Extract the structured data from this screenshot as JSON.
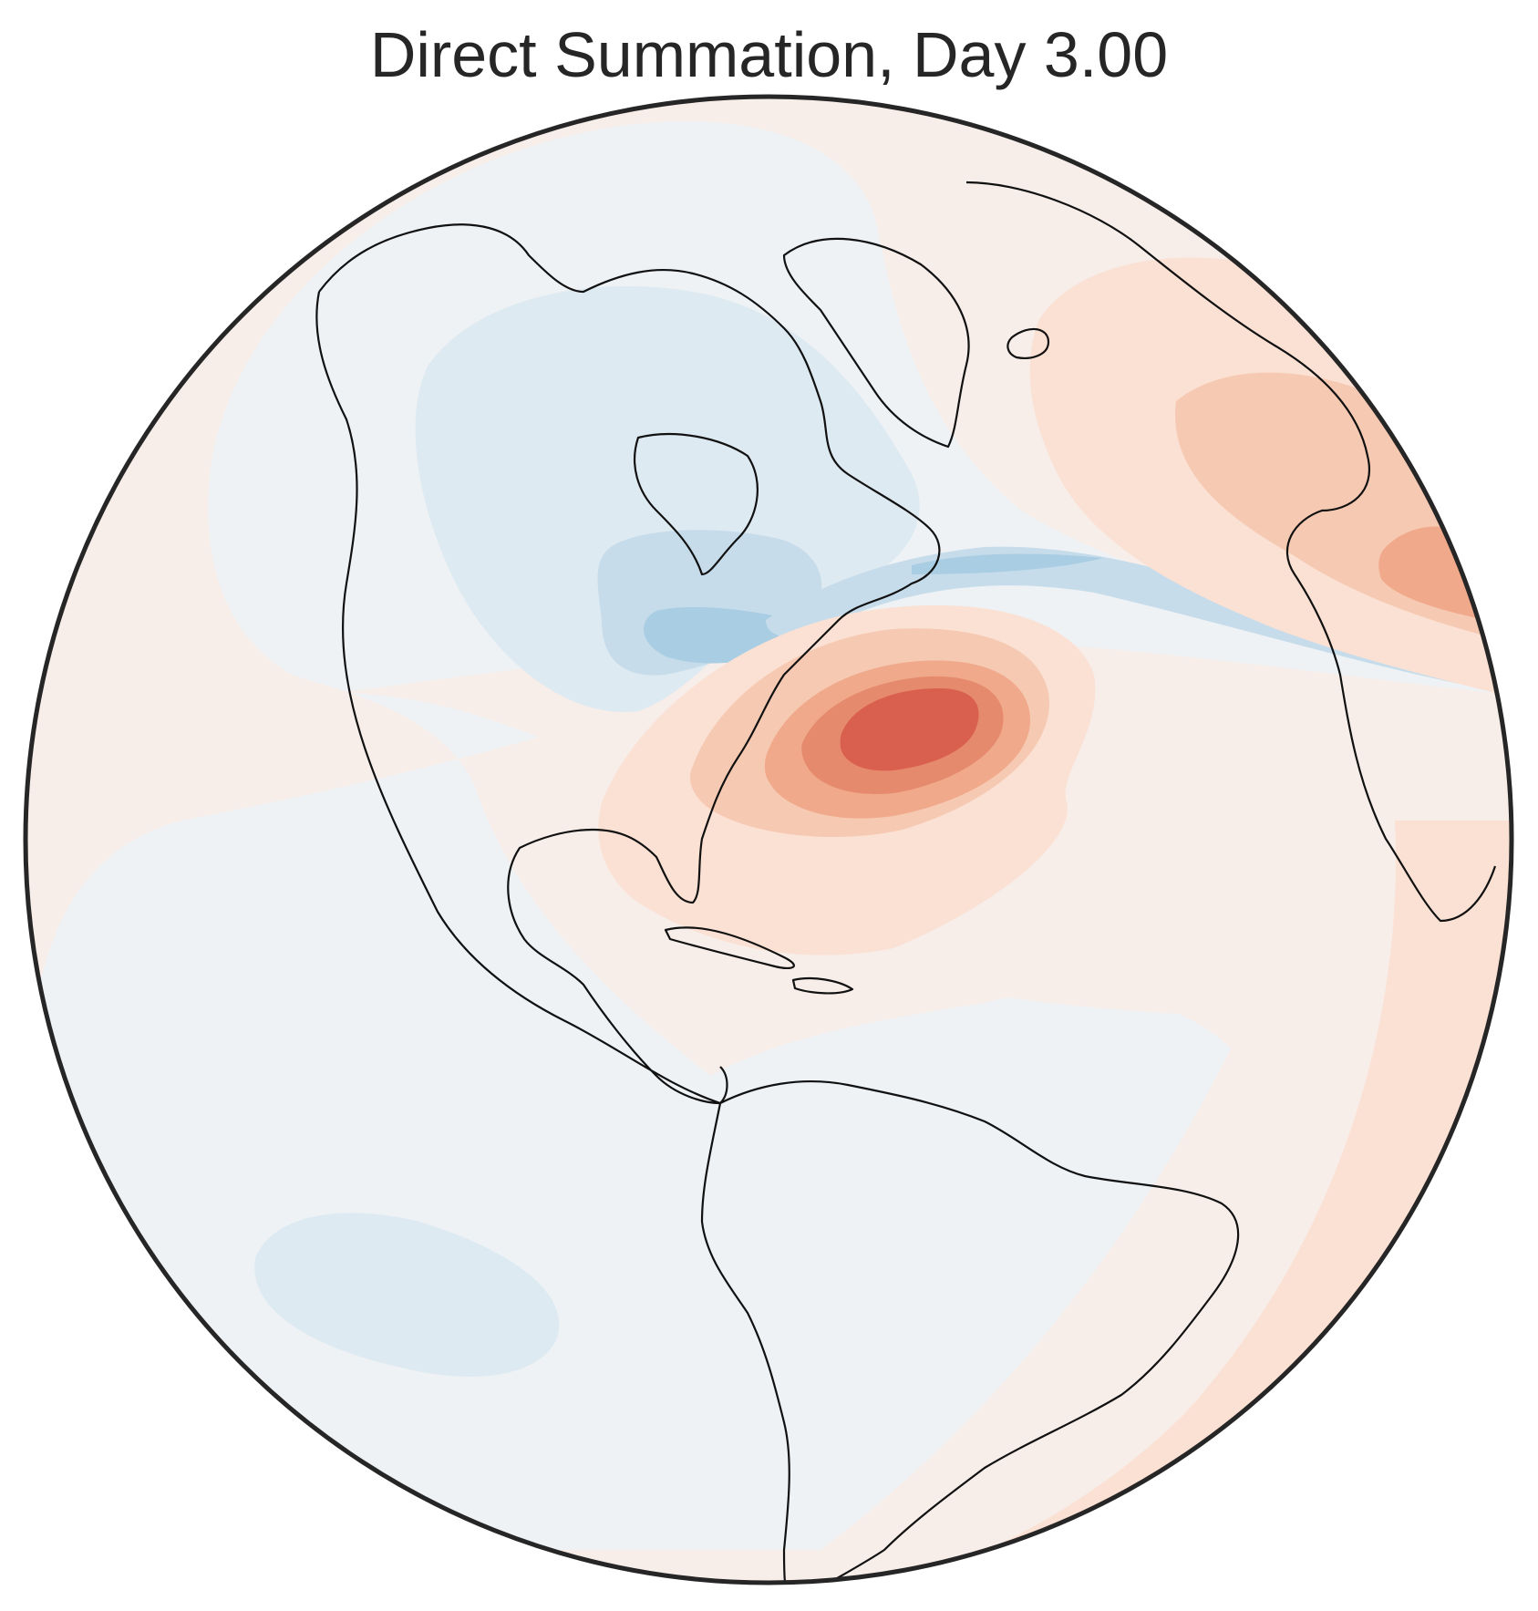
{
  "figure": {
    "title": "Direct Summation, Day 3.00",
    "projection": "orthographic",
    "colormap": "diverging red-blue",
    "colors": {
      "background_positive": "#f7ede9",
      "background_negative": "#eef2f5",
      "blue_1": "#deeaf2",
      "blue_2": "#c6dcea",
      "blue_3": "#a9cde2",
      "red_1": "#fbe1d4",
      "red_2": "#f6c9b2",
      "red_3": "#f0a98a",
      "red_4": "#e68a6d",
      "red_5": "#d9604f",
      "coastline": "#111111",
      "frame": "#262626"
    },
    "features": [
      {
        "name": "strong positive anomaly off the US east coast",
        "sign": "positive",
        "levels": 5
      },
      {
        "name": "negative anomaly over Canada and Hudson Bay",
        "sign": "negative",
        "levels": 3
      },
      {
        "name": "narrow negative band across the North Atlantic",
        "sign": "negative",
        "levels": 2
      },
      {
        "name": "positive anomaly over western Europe",
        "sign": "positive",
        "levels": 3
      },
      {
        "name": "weak negative anomaly over the South Pacific",
        "sign": "negative",
        "levels": 1
      }
    ]
  }
}
